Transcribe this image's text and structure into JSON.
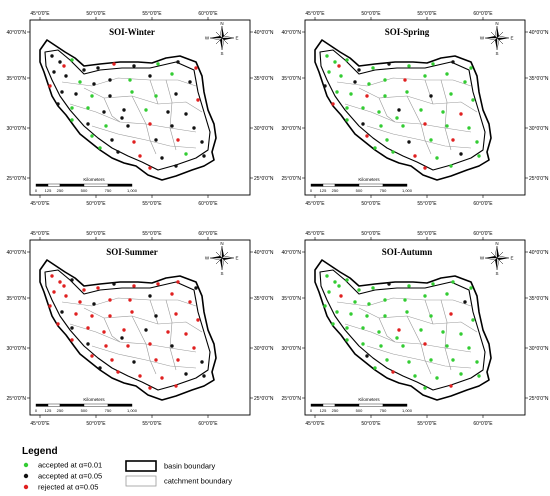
{
  "panels": [
    {
      "id": "winter",
      "title": "SOI-Winter"
    },
    {
      "id": "spring",
      "title": "SOI-Spring"
    },
    {
      "id": "summer",
      "title": "SOI-Summer"
    },
    {
      "id": "autumn",
      "title": "SOI-Autumn"
    }
  ],
  "axes": {
    "top_lon": [
      "45°0'0\"E",
      "50°0'0\"E",
      "55°0'0\"E",
      "60°0'0\"E"
    ],
    "bottom_lon": [
      "45°0'0\"E",
      "50°0'0\"E",
      "55°0'0\"E",
      "60°0'0\"E"
    ],
    "left_lat": [
      "40°0'0\"N",
      "35°0'0\"N",
      "30°0'0\"N",
      "25°0'0\"N"
    ],
    "right_lat": [
      "40°0'0\"N",
      "35°0'0\"N",
      "30°0'0\"N",
      "25°0'0\"N"
    ]
  },
  "scale_bar": {
    "unit": "Kilometers",
    "ticks": [
      "0",
      "125",
      "250",
      "500",
      "750",
      "1,000"
    ]
  },
  "compass": {
    "n": "N",
    "s": "S",
    "e": "E",
    "w": "W"
  },
  "legend": {
    "title": "Legend",
    "points": [
      {
        "label": "accepted at α=0.01",
        "color": "#33cc33"
      },
      {
        "label": "accepted at α=0.05",
        "color": "#111111"
      },
      {
        "label": "rejected at α=0.05",
        "color": "#e02020"
      }
    ],
    "lines": [
      {
        "label": "basin boundary"
      },
      {
        "label": "catchment boundary"
      }
    ]
  },
  "colors": {
    "accepted_001": "#33cc33",
    "accepted_005": "#111111",
    "rejected_005": "#e02020",
    "basin_line": "#000000",
    "catchment_line": "#9a9a9a"
  }
}
